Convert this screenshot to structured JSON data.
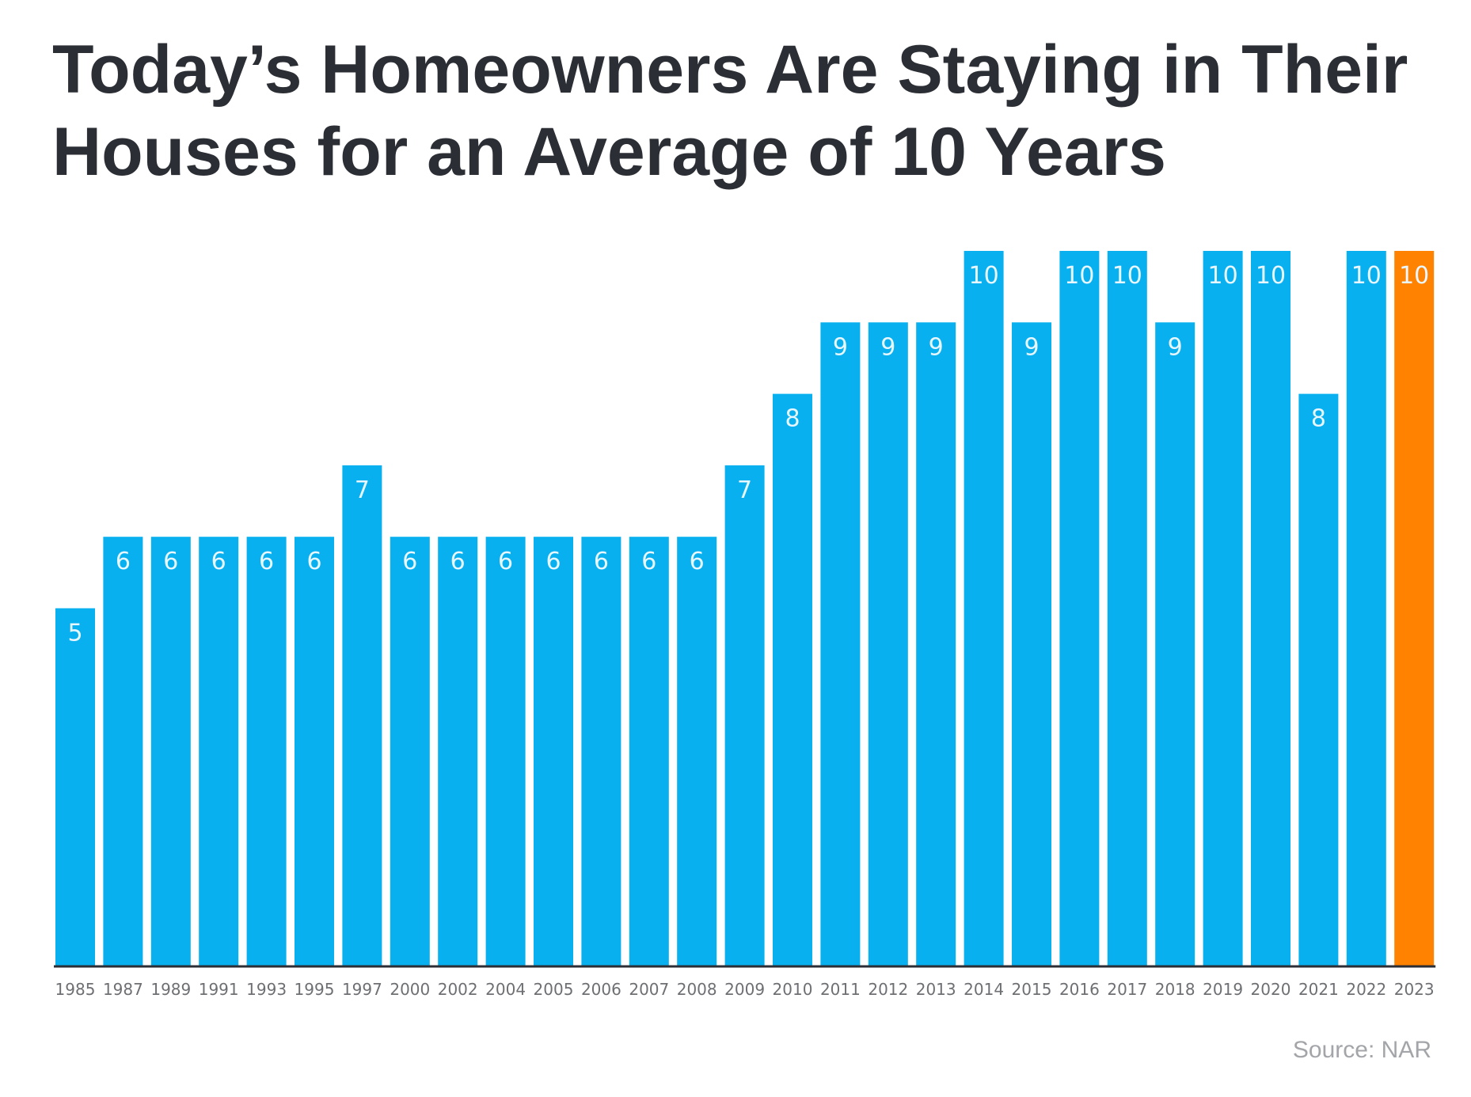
{
  "title": "Today’s Homeowners Are Staying in Their Houses for an Average of 10 Years",
  "source": "Source: NAR",
  "colors": {
    "bar": "#08b0ef",
    "highlight": "#ff8200",
    "axis": "#2b2f35",
    "title": "#2b2f35"
  },
  "chart_data": {
    "type": "bar",
    "title": "Today’s Homeowners Are Staying in Their Houses for an Average of 10 Years",
    "xlabel": "",
    "ylabel": "",
    "ylim": [
      0,
      10
    ],
    "grid": false,
    "highlight_category": "2023",
    "categories": [
      "1985",
      "1987",
      "1989",
      "1991",
      "1993",
      "1995",
      "1997",
      "2000",
      "2002",
      "2004",
      "2005",
      "2006",
      "2007",
      "2008",
      "2009",
      "2010",
      "2011",
      "2012",
      "2013",
      "2014",
      "2015",
      "2016",
      "2017",
      "2018",
      "2019",
      "2020",
      "2021",
      "2022",
      "2023"
    ],
    "values": [
      5,
      6,
      6,
      6,
      6,
      6,
      7,
      6,
      6,
      6,
      6,
      6,
      6,
      6,
      7,
      8,
      9,
      9,
      9,
      10,
      9,
      10,
      10,
      9,
      10,
      10,
      8,
      10,
      10
    ]
  }
}
